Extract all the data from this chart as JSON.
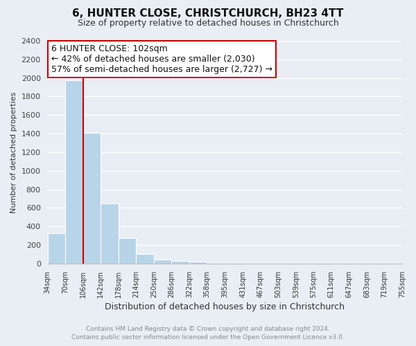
{
  "title": "6, HUNTER CLOSE, CHRISTCHURCH, BH23 4TT",
  "subtitle": "Size of property relative to detached houses in Christchurch",
  "xlabel": "Distribution of detached houses by size in Christchurch",
  "ylabel": "Number of detached properties",
  "bar_edges": [
    34,
    70,
    106,
    142,
    178,
    214,
    250,
    286,
    322,
    358,
    395,
    431,
    467,
    503,
    539,
    575,
    611,
    647,
    683,
    719,
    755
  ],
  "bar_heights": [
    325,
    1975,
    1410,
    650,
    275,
    100,
    45,
    30,
    20,
    0,
    0,
    0,
    0,
    0,
    0,
    0,
    0,
    0,
    0,
    0
  ],
  "bar_color": "#b8d4e8",
  "bar_edge_color": "#ffffff",
  "property_line_x": 106,
  "property_line_color": "#cc0000",
  "annotation_line1": "6 HUNTER CLOSE: 102sqm",
  "annotation_line2": "← 42% of detached houses are smaller (2,030)",
  "annotation_line3": "57% of semi-detached houses are larger (2,727) →",
  "annotation_box_color": "#ffffff",
  "annotation_box_edge": "#cc0000",
  "ylim": [
    0,
    2400
  ],
  "yticks": [
    0,
    200,
    400,
    600,
    800,
    1000,
    1200,
    1400,
    1600,
    1800,
    2000,
    2200,
    2400
  ],
  "tick_labels": [
    "34sqm",
    "70sqm",
    "106sqm",
    "142sqm",
    "178sqm",
    "214sqm",
    "250sqm",
    "286sqm",
    "322sqm",
    "358sqm",
    "395sqm",
    "431sqm",
    "467sqm",
    "503sqm",
    "539sqm",
    "575sqm",
    "611sqm",
    "647sqm",
    "683sqm",
    "719sqm",
    "755sqm"
  ],
  "background_color": "#e8eef4",
  "footer_line1": "Contains HM Land Registry data © Crown copyright and database right 2024.",
  "footer_line2": "Contains public sector information licensed under the Open Government Licence v3.0.",
  "grid_color": "#ffffff",
  "title_fontsize": 11,
  "subtitle_fontsize": 9,
  "annotation_fontsize": 9,
  "ylabel_fontsize": 8,
  "xlabel_fontsize": 9
}
